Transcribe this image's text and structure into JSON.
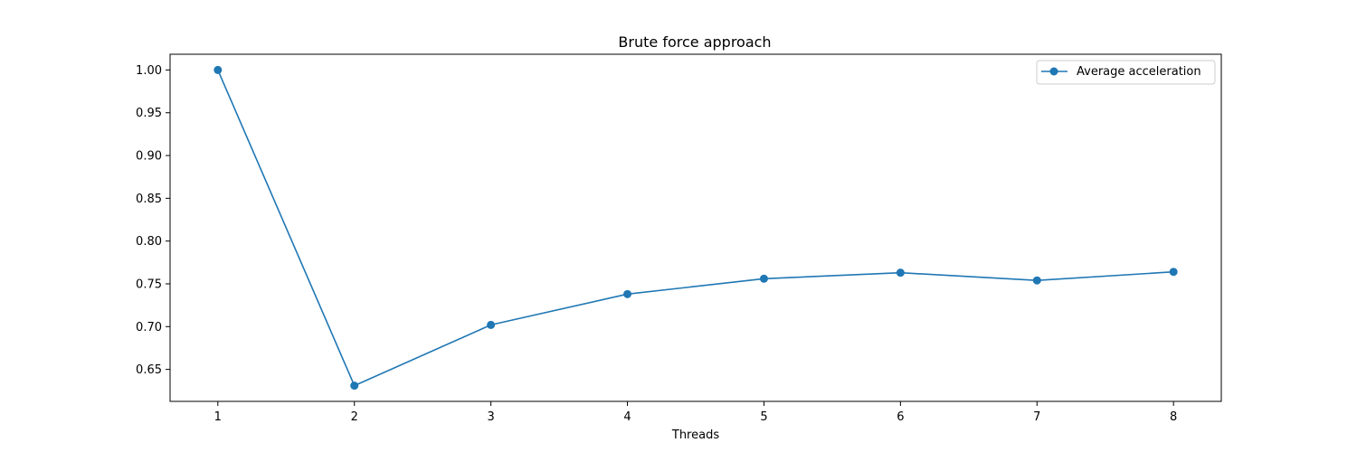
{
  "chart_data": {
    "type": "line",
    "title": "Brute force approach",
    "xlabel": "Threads",
    "ylabel": "",
    "x": [
      1,
      2,
      3,
      4,
      5,
      6,
      7,
      8
    ],
    "series": [
      {
        "name": "Average acceleration",
        "values": [
          1.0,
          0.631,
          0.702,
          0.738,
          0.756,
          0.763,
          0.754,
          0.764
        ],
        "color": "#1f77b4"
      }
    ],
    "xlim": [
      0.65,
      8.35
    ],
    "ylim": [
      0.6126,
      1.0184
    ],
    "xticks": [
      1,
      2,
      3,
      4,
      5,
      6,
      7,
      8
    ],
    "yticks": [
      0.65,
      0.7,
      0.75,
      0.8,
      0.85,
      0.9,
      0.95,
      1.0
    ],
    "grid": false,
    "legend_position": "top-right"
  }
}
